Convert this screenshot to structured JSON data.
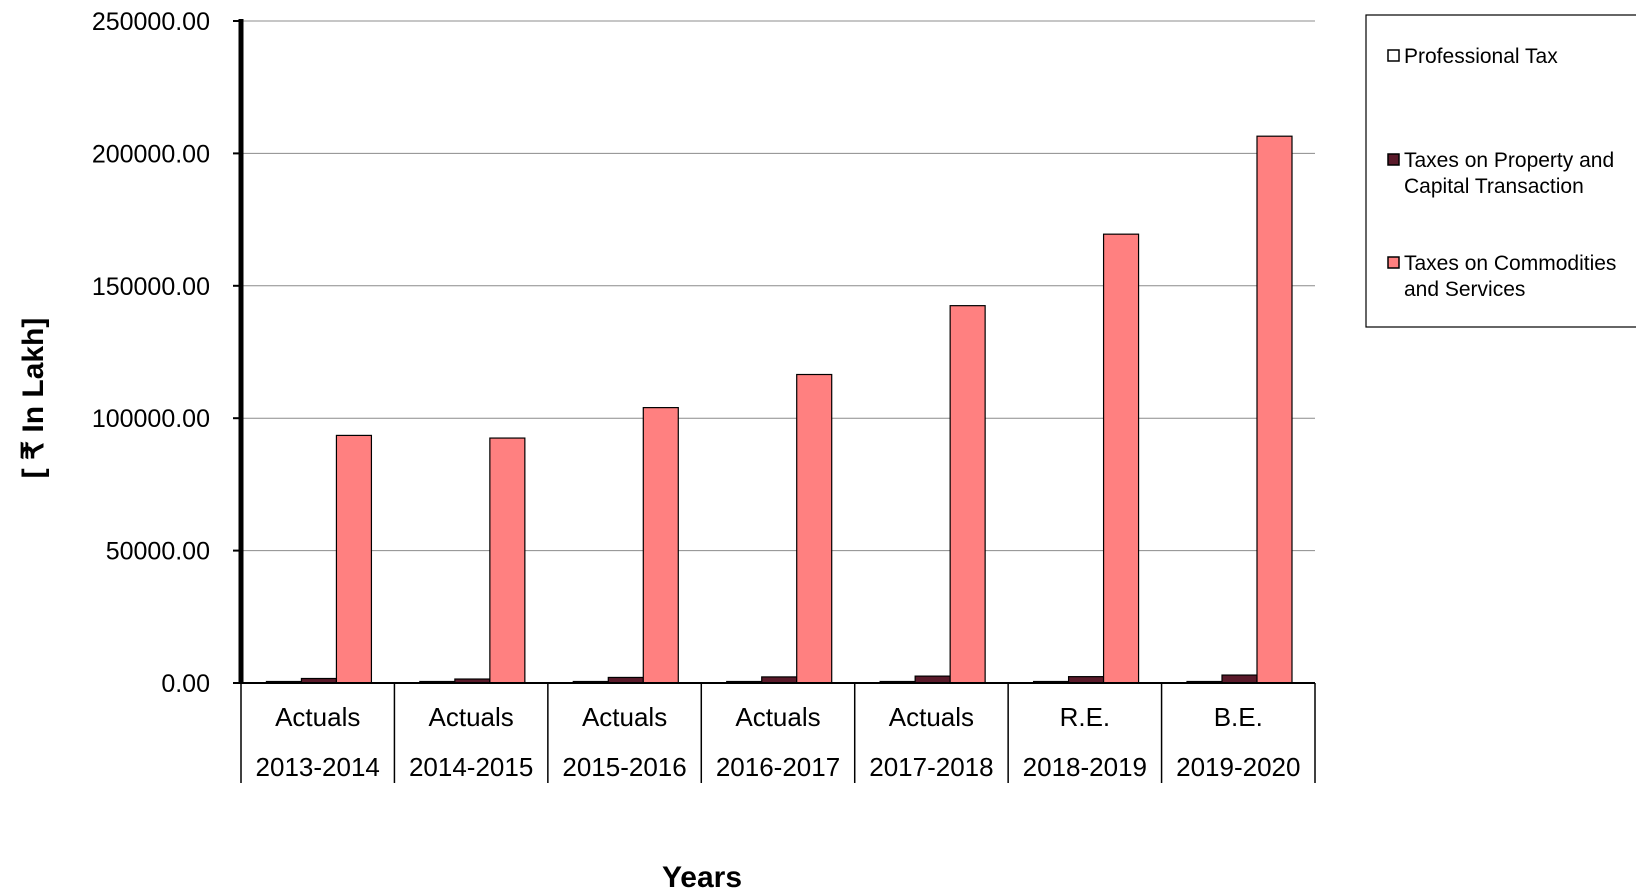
{
  "chart_data": {
    "type": "bar",
    "categories": [
      [
        "Actuals",
        "2013-2014"
      ],
      [
        "Actuals",
        "2014-2015"
      ],
      [
        "Actuals",
        "2015-2016"
      ],
      [
        "Actuals",
        "2016-2017"
      ],
      [
        "Actuals",
        "2017-2018"
      ],
      [
        "R.E.",
        "2018-2019"
      ],
      [
        "B.E.",
        "2019-2020"
      ]
    ],
    "series": [
      {
        "name": "Professional Tax",
        "color": "#ffffff",
        "values": [
          150,
          160,
          170,
          180,
          190,
          200,
          210
        ]
      },
      {
        "name": "Taxes on Property and Capital Transaction",
        "color": "#5a1a2a",
        "values": [
          1700,
          1500,
          2100,
          2300,
          2600,
          2400,
          3000
        ]
      },
      {
        "name": "Taxes on Commodities and Services",
        "color": "#ff8080",
        "values": [
          93500,
          92500,
          104000,
          116500,
          142500,
          169500,
          206500
        ]
      }
    ],
    "title": "",
    "xlabel": "Years",
    "ylabel": "[ ₹ In Lakh]",
    "ylim": [
      0,
      250000
    ],
    "yticks": [
      "0.00",
      "50000.00",
      "100000.00",
      "150000.00",
      "200000.00",
      "250000.00"
    ],
    "grid": true,
    "legend": "right"
  }
}
